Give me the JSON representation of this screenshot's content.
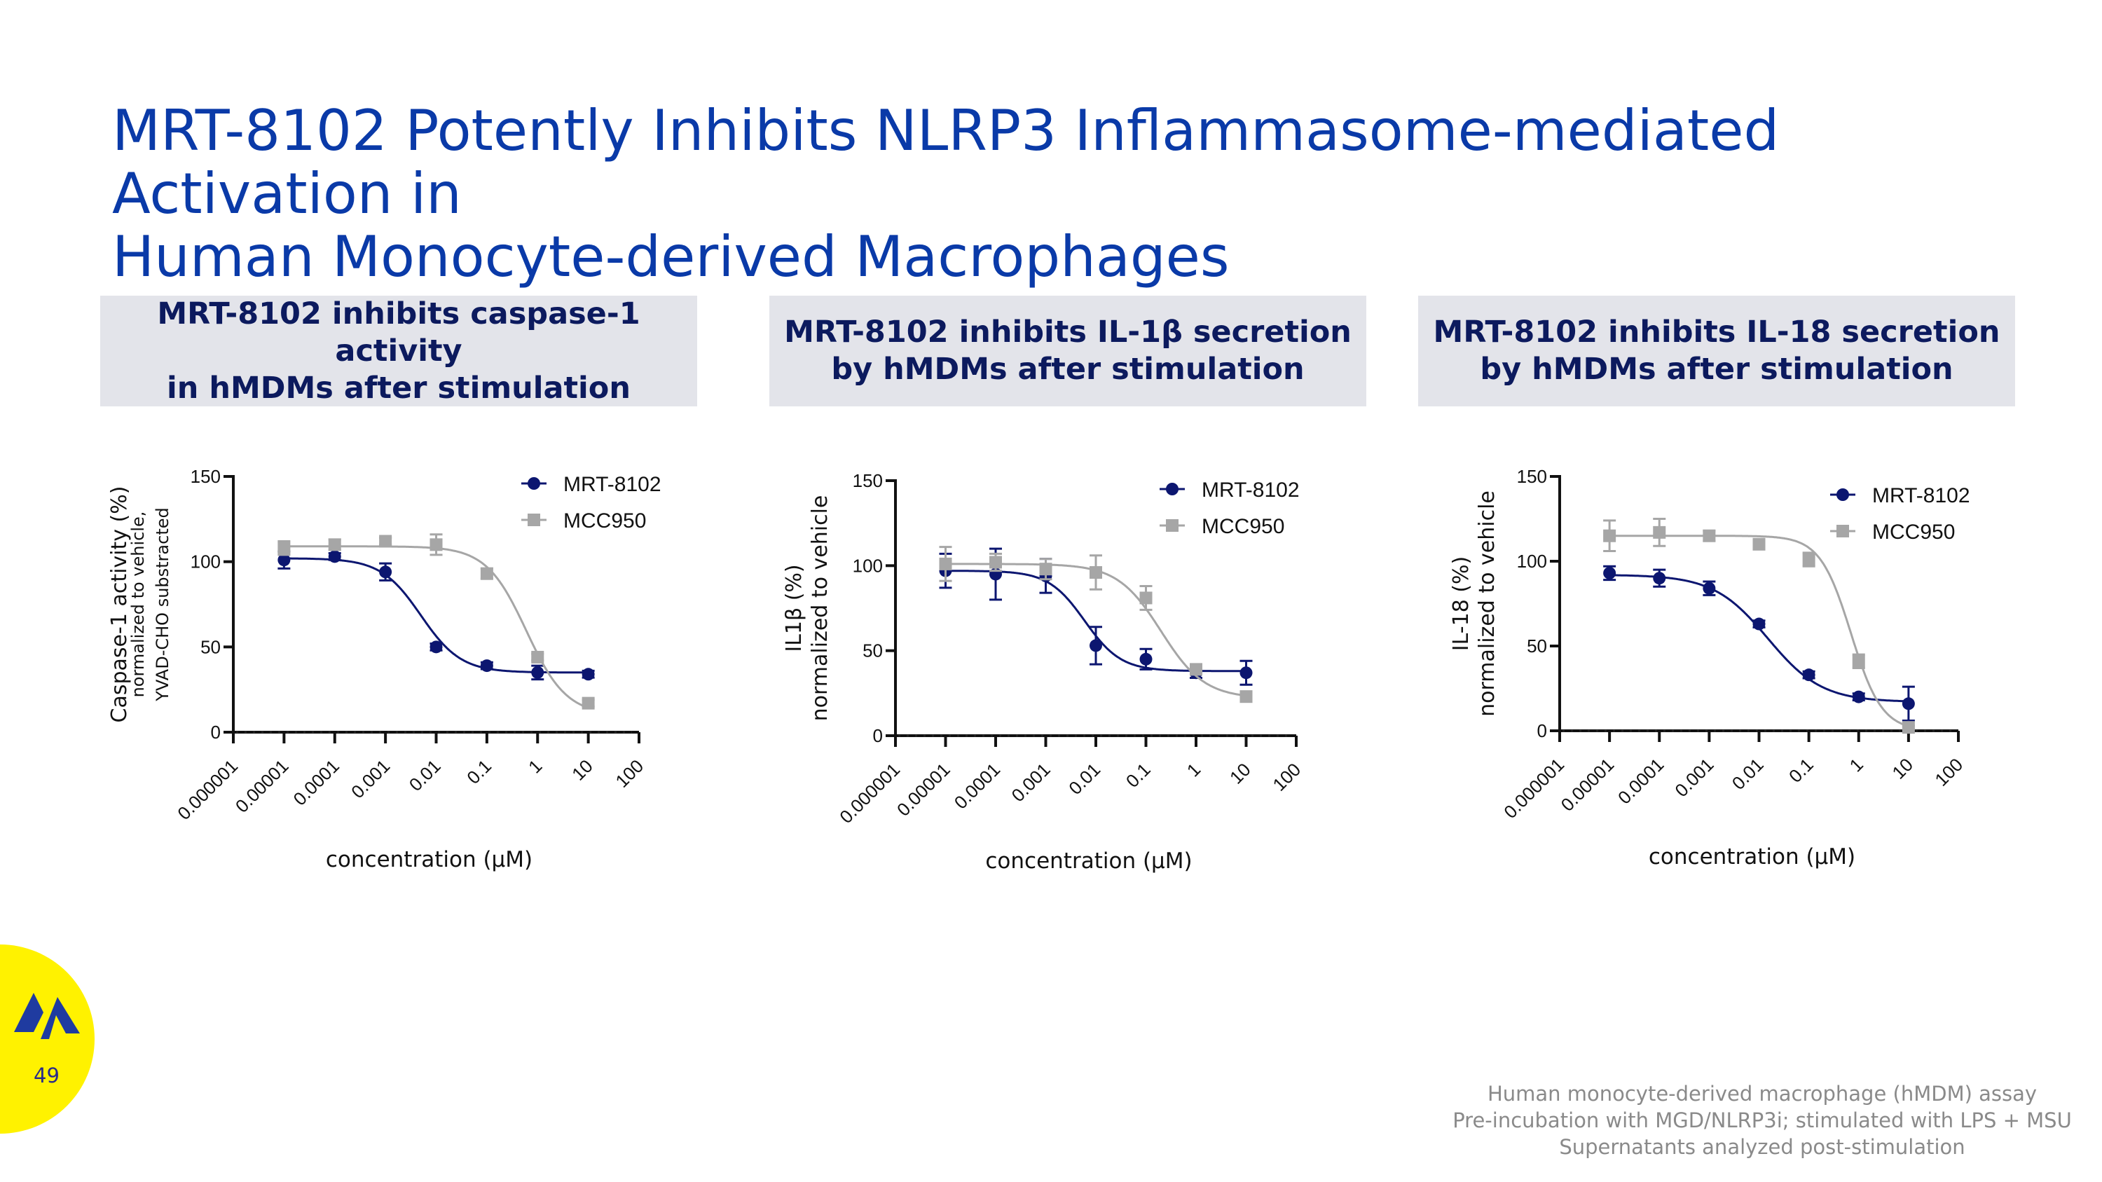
{
  "slide": {
    "title_line1": "MRT-8102 Potently Inhibits NLRP3 Inflammasome-mediated Activation in",
    "title_line2": "Human Monocyte-derived Macrophages",
    "page_number": "49",
    "footnotes": [
      "Human monocyte-derived macrophage (hMDM) assay",
      "Pre-incubation with MGD/NLRP3i; stimulated with LPS + MSU",
      "Supernatants analyzed post-stimulation"
    ]
  },
  "panels": [
    {
      "header_line1": "MRT-8102 inhibits caspase-1 activity",
      "header_line2": "in hMDMs after stimulation"
    },
    {
      "header_line1": "MRT-8102 inhibits IL-1β secretion",
      "header_line2": "by hMDMs after stimulation"
    },
    {
      "header_line1": "MRT-8102 inhibits IL-18 secretion",
      "header_line2": "by hMDMs after stimulation"
    }
  ],
  "colors": {
    "title": "#0a3aa8",
    "mrt": "#0c1670",
    "mcc": "#a6a6a6",
    "header_bg": "#e3e4ea",
    "logo_bg": "#fff200"
  },
  "chart_data": [
    {
      "type": "scatter",
      "title": "MRT-8102 inhibits caspase-1 activity in hMDMs after stimulation",
      "ylabel_lines": [
        "Caspase-1 activity (%)",
        "normalized to vehicle,",
        "YVAD-CHO substracted"
      ],
      "xlabel": "concentration (µM)",
      "x_scale": "log10",
      "xlim": [
        1e-06,
        100
      ],
      "ylim": [
        0,
        150
      ],
      "x_ticks": [
        "0.000001",
        "0.00001",
        "0.0001",
        "0.001",
        "0.01",
        "0.1",
        "1",
        "10",
        "100"
      ],
      "y_ticks": [
        "0",
        "50",
        "100",
        "150"
      ],
      "baseline": 0,
      "legend_position": "top-right",
      "series": [
        {
          "name": "MRT-8102",
          "marker": "circle",
          "x": [
            1e-05,
            0.0001,
            0.001,
            0.01,
            0.1,
            1,
            10
          ],
          "y": [
            101,
            103,
            94,
            50,
            39,
            35,
            34
          ],
          "err": [
            5,
            2,
            5,
            2,
            2,
            4,
            2
          ],
          "fit": {
            "bottom": 35,
            "top": 102,
            "ic50": 0.005,
            "hill": 1.1
          }
        },
        {
          "name": "MCC950",
          "marker": "square",
          "x": [
            1e-05,
            0.0001,
            0.001,
            0.01,
            0.1,
            1,
            10
          ],
          "y": [
            108,
            110,
            112,
            110,
            93,
            44,
            17
          ],
          "err": [
            4,
            3,
            2,
            6,
            3,
            2,
            2
          ],
          "fit": {
            "bottom": 10,
            "top": 109,
            "ic50": 0.6,
            "hill": 1.1
          }
        }
      ]
    },
    {
      "type": "scatter",
      "title": "MRT-8102 inhibits IL-1β secretion by hMDMs after stimulation",
      "ylabel_lines": [
        "IL1β (%)",
        "normalized to vehicle"
      ],
      "xlabel": "concentration (µM)",
      "x_scale": "log10",
      "xlim": [
        1e-06,
        100
      ],
      "ylim": [
        0,
        150
      ],
      "x_ticks": [
        "0.000001",
        "0.00001",
        "0.0001",
        "0.001",
        "0.01",
        "0.1",
        "1",
        "10",
        "100"
      ],
      "y_ticks": [
        "0",
        "50",
        "100",
        "150"
      ],
      "baseline": 0,
      "legend_position": "top-right",
      "series": [
        {
          "name": "MRT-8102",
          "marker": "circle",
          "x": [
            1e-05,
            0.0001,
            0.001,
            0.01,
            0.1,
            1,
            10
          ],
          "y": [
            97,
            95,
            94,
            53,
            45,
            37,
            37
          ],
          "err": [
            10,
            15,
            10,
            11,
            6,
            3,
            7
          ],
          "fit": {
            "bottom": 38,
            "top": 97,
            "ic50": 0.006,
            "hill": 1.2
          }
        },
        {
          "name": "MCC950",
          "marker": "square",
          "x": [
            1e-05,
            0.0001,
            0.001,
            0.01,
            0.1,
            1,
            10
          ],
          "y": [
            101,
            102,
            98,
            96,
            81,
            39,
            23
          ],
          "err": [
            10,
            5,
            6,
            10,
            7,
            2,
            3
          ],
          "fit": {
            "bottom": 22,
            "top": 101,
            "ic50": 0.2,
            "hill": 1.0
          }
        }
      ]
    },
    {
      "type": "scatter",
      "title": "MRT-8102 inhibits IL-18 secretion by hMDMs after stimulation",
      "ylabel_lines": [
        "IL-18 (%)",
        "normalized to vehicle"
      ],
      "xlabel": "concentration (µM)",
      "x_scale": "log10",
      "xlim": [
        1e-06,
        100
      ],
      "ylim": [
        0,
        150
      ],
      "x_ticks": [
        "0.000001",
        "0.00001",
        "0.0001",
        "0.001",
        "0.01",
        "0.1",
        "1",
        "10",
        "100"
      ],
      "y_ticks": [
        "0",
        "50",
        "100",
        "150"
      ],
      "baseline": 0,
      "legend_position": "top-right",
      "series": [
        {
          "name": "MRT-8102",
          "marker": "circle",
          "x": [
            1e-05,
            0.0001,
            0.001,
            0.01,
            0.1,
            1,
            10
          ],
          "y": [
            93,
            90,
            84,
            63,
            33,
            20,
            16
          ],
          "err": [
            4,
            5,
            4,
            2,
            2,
            2,
            10
          ],
          "fit": {
            "bottom": 17,
            "top": 92,
            "ic50": 0.015,
            "hill": 0.8
          }
        },
        {
          "name": "MCC950",
          "marker": "square",
          "x": [
            1e-05,
            0.0001,
            0.001,
            0.01,
            0.1,
            1,
            10
          ],
          "y": [
            115,
            117,
            115,
            110,
            101,
            41,
            2
          ],
          "err": [
            9,
            8,
            3,
            3,
            4,
            4,
            1
          ],
          "fit": {
            "bottom": 0,
            "top": 115,
            "ic50": 0.7,
            "hill": 1.4
          }
        }
      ]
    }
  ]
}
